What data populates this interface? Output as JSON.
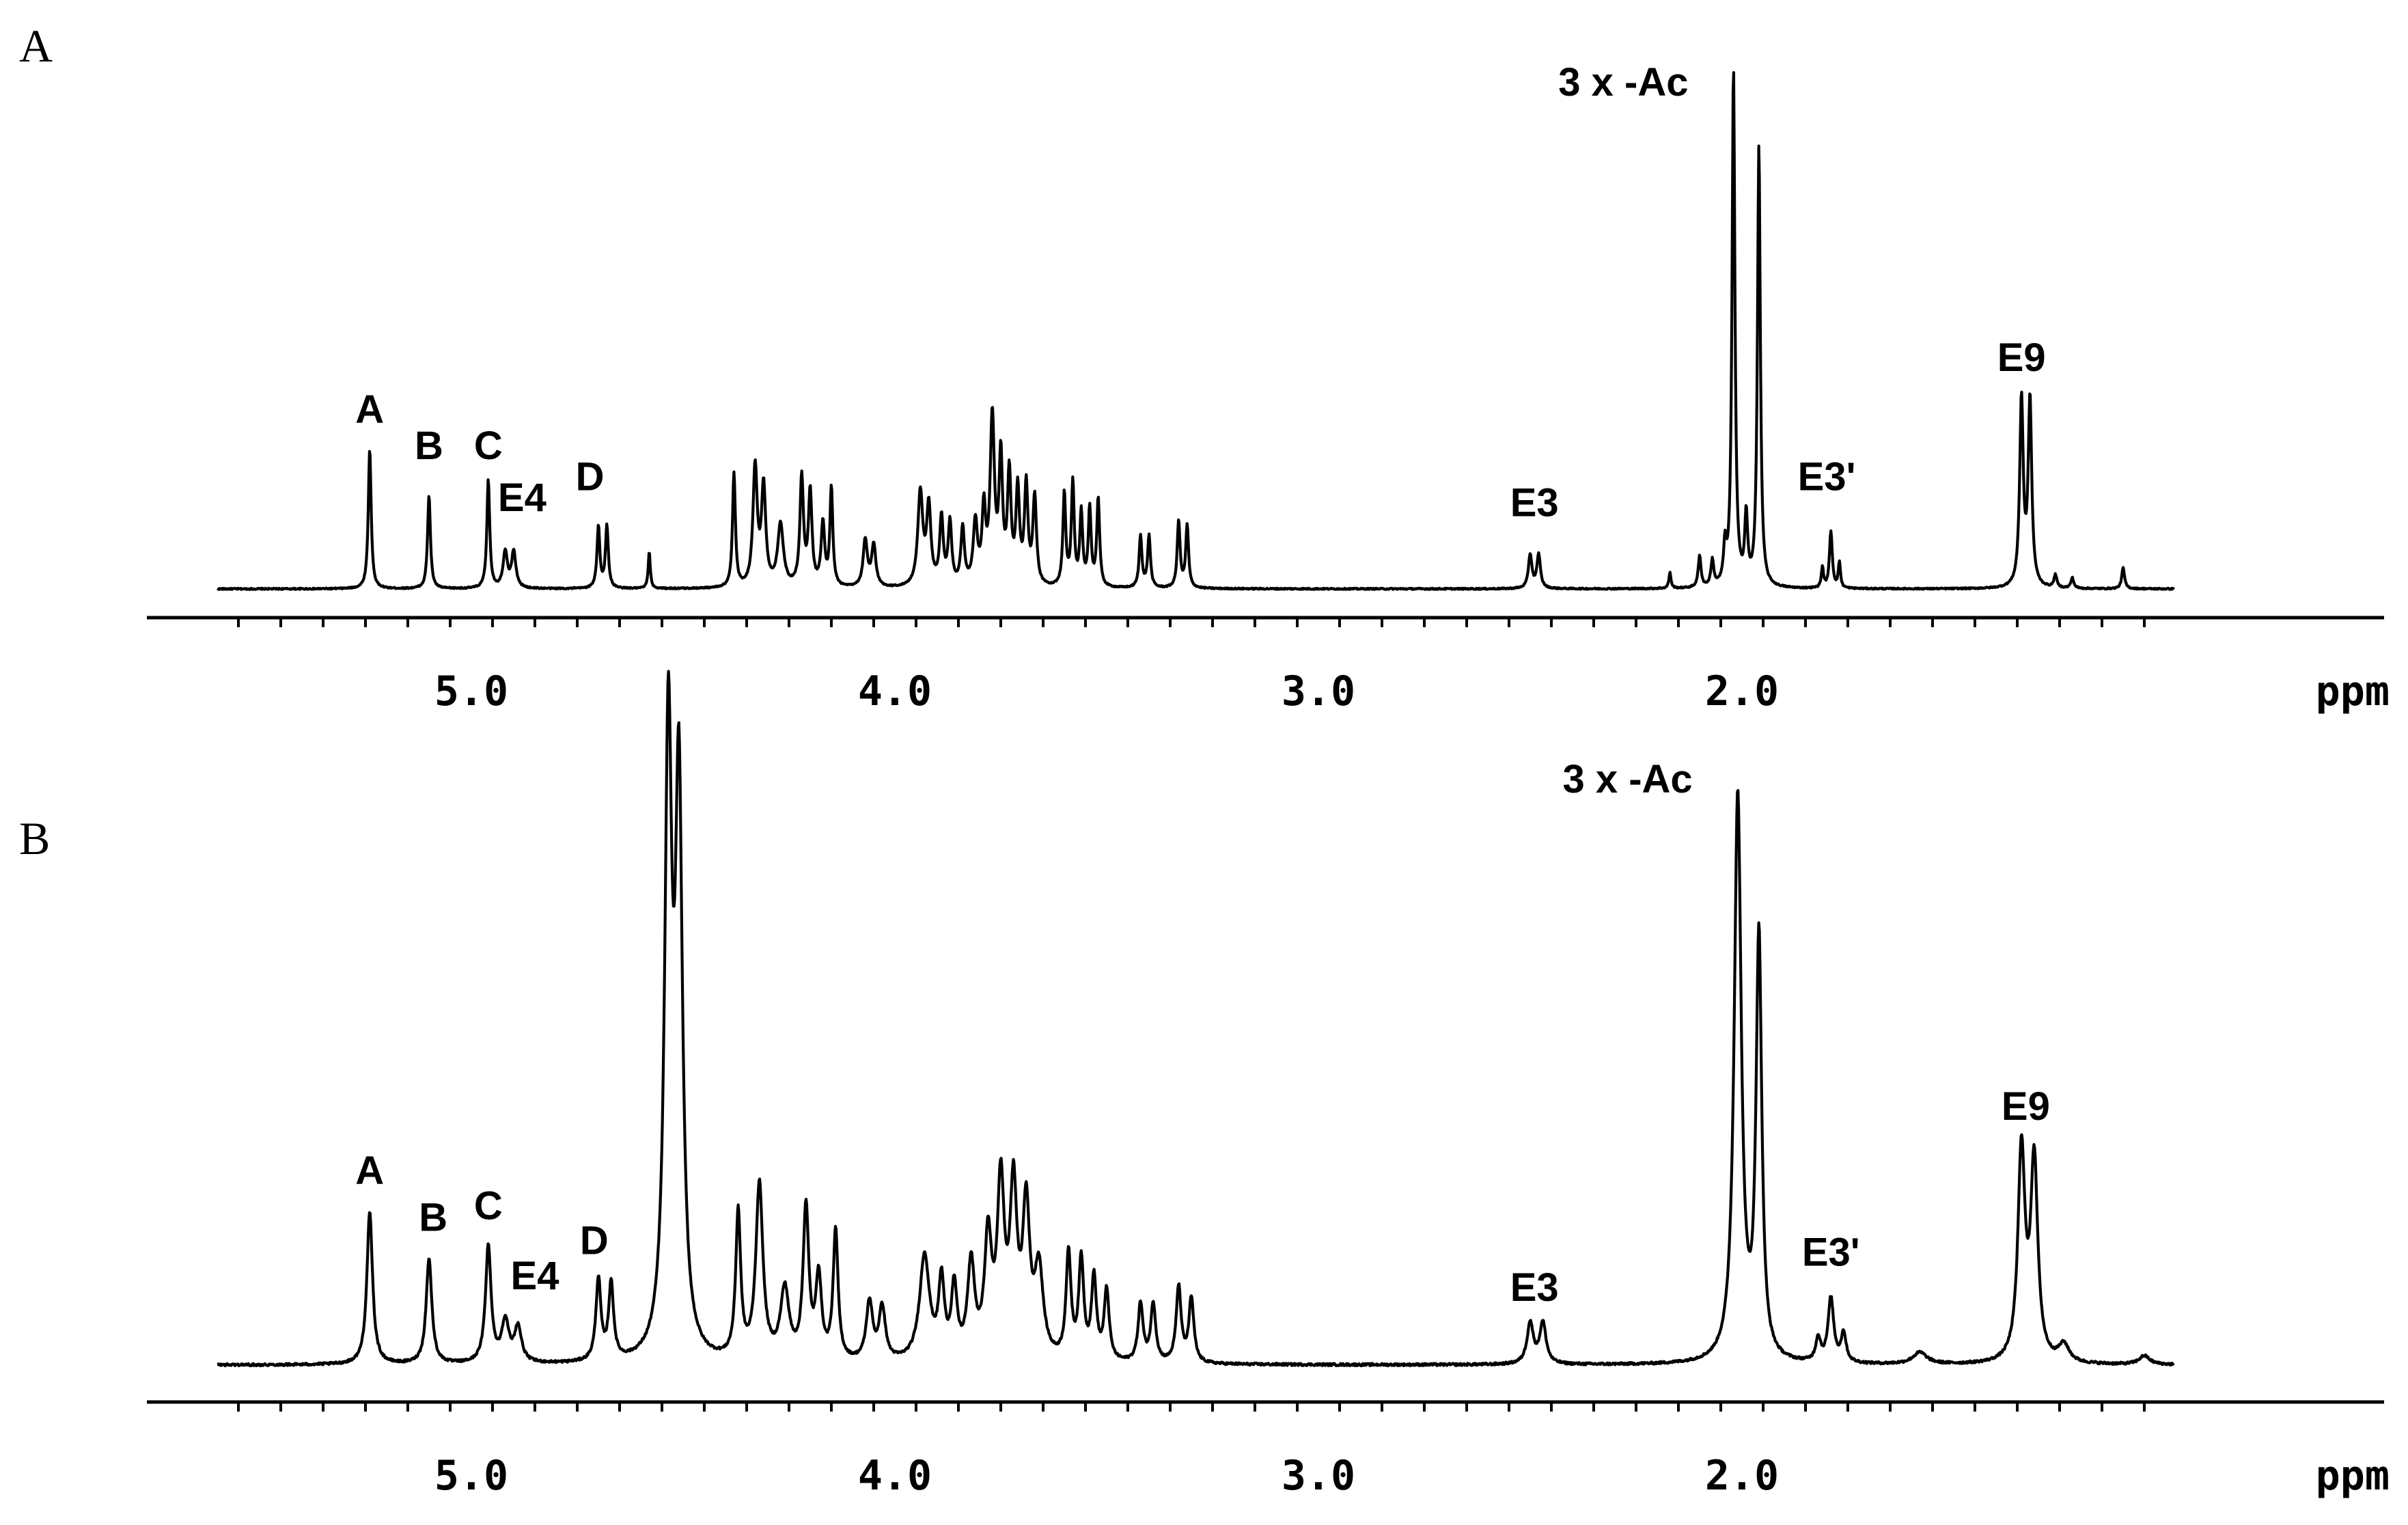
{
  "chart_data": [
    {
      "type": "line",
      "panel": "A",
      "x_axis": {
        "unit": "ppm",
        "reversed": true,
        "range": [
          5.6,
          0.98
        ],
        "tick_labels": [
          "5.0",
          "4.0",
          "3.0",
          "2.0"
        ],
        "minor_step": 0.1
      },
      "y_range": [
        0,
        1
      ],
      "peaks": [
        {
          "label": "A",
          "ppm": 5.24,
          "height": 0.27,
          "width": 0.004
        },
        {
          "label": "B",
          "ppm": 5.1,
          "height": 0.18,
          "width": 0.004
        },
        {
          "label": "C",
          "ppm": 4.96,
          "height": 0.21,
          "width": 0.004
        },
        {
          "label": "E4",
          "ppm": 4.92,
          "height": 0.07,
          "width": 0.006
        },
        {
          "ppm": 4.9,
          "height": 0.07,
          "width": 0.006
        },
        {
          "label": "D",
          "ppm": 4.7,
          "height": 0.12,
          "width": 0.004
        },
        {
          "ppm": 4.68,
          "height": 0.12,
          "width": 0.004
        },
        {
          "ppm": 4.58,
          "height": 0.07,
          "width": 0.003
        },
        {
          "ppm": 4.38,
          "height": 0.22,
          "width": 0.004
        },
        {
          "ppm": 4.33,
          "height": 0.23,
          "width": 0.006
        },
        {
          "ppm": 4.31,
          "height": 0.19,
          "width": 0.006
        },
        {
          "ppm": 4.27,
          "height": 0.12,
          "width": 0.008
        },
        {
          "ppm": 4.22,
          "height": 0.21,
          "width": 0.005
        },
        {
          "ppm": 4.2,
          "height": 0.18,
          "width": 0.005
        },
        {
          "ppm": 4.17,
          "height": 0.12,
          "width": 0.005
        },
        {
          "ppm": 4.15,
          "height": 0.19,
          "width": 0.004
        },
        {
          "ppm": 4.07,
          "height": 0.09,
          "width": 0.006
        },
        {
          "ppm": 4.05,
          "height": 0.08,
          "width": 0.006
        },
        {
          "ppm": 3.94,
          "height": 0.18,
          "width": 0.007
        },
        {
          "ppm": 3.92,
          "height": 0.15,
          "width": 0.006
        },
        {
          "ppm": 3.89,
          "height": 0.13,
          "width": 0.005
        },
        {
          "ppm": 3.87,
          "height": 0.12,
          "width": 0.005
        },
        {
          "ppm": 3.84,
          "height": 0.11,
          "width": 0.005
        },
        {
          "ppm": 3.81,
          "height": 0.12,
          "width": 0.006
        },
        {
          "ppm": 3.79,
          "height": 0.14,
          "width": 0.005
        },
        {
          "ppm": 3.77,
          "height": 0.32,
          "width": 0.006
        },
        {
          "ppm": 3.75,
          "height": 0.24,
          "width": 0.005
        },
        {
          "ppm": 3.73,
          "height": 0.21,
          "width": 0.005
        },
        {
          "ppm": 3.71,
          "height": 0.18,
          "width": 0.005
        },
        {
          "ppm": 3.69,
          "height": 0.19,
          "width": 0.005
        },
        {
          "ppm": 3.67,
          "height": 0.17,
          "width": 0.005
        },
        {
          "ppm": 3.6,
          "height": 0.18,
          "width": 0.004
        },
        {
          "ppm": 3.58,
          "height": 0.2,
          "width": 0.004
        },
        {
          "ppm": 3.56,
          "height": 0.14,
          "width": 0.004
        },
        {
          "ppm": 3.54,
          "height": 0.15,
          "width": 0.004
        },
        {
          "ppm": 3.52,
          "height": 0.17,
          "width": 0.004
        },
        {
          "ppm": 3.42,
          "height": 0.1,
          "width": 0.004
        },
        {
          "ppm": 3.4,
          "height": 0.1,
          "width": 0.004
        },
        {
          "ppm": 3.33,
          "height": 0.13,
          "width": 0.004
        },
        {
          "ppm": 3.31,
          "height": 0.12,
          "width": 0.004
        },
        {
          "label": "E3",
          "ppm": 2.5,
          "height": 0.065,
          "width": 0.005
        },
        {
          "ppm": 2.48,
          "height": 0.065,
          "width": 0.005
        },
        {
          "ppm": 2.17,
          "height": 0.03,
          "width": 0.003
        },
        {
          "ppm": 2.1,
          "height": 0.06,
          "width": 0.004
        },
        {
          "ppm": 2.07,
          "height": 0.05,
          "width": 0.004
        },
        {
          "ppm": 2.04,
          "height": 0.07,
          "width": 0.004
        },
        {
          "label": "3 x -Ac",
          "ppm": 2.02,
          "height": 1.0,
          "width": 0.004
        },
        {
          "ppm": 1.99,
          "height": 0.13,
          "width": 0.004
        },
        {
          "ppm": 1.96,
          "height": 0.85,
          "width": 0.004
        },
        {
          "ppm": 1.81,
          "height": 0.04,
          "width": 0.003
        },
        {
          "label": "E3'",
          "ppm": 1.79,
          "height": 0.11,
          "width": 0.004
        },
        {
          "ppm": 1.77,
          "height": 0.05,
          "width": 0.003
        },
        {
          "label": "E9",
          "ppm": 1.34,
          "height": 0.36,
          "width": 0.005
        },
        {
          "ppm": 1.32,
          "height": 0.36,
          "width": 0.005
        },
        {
          "ppm": 1.26,
          "height": 0.025,
          "width": 0.004
        },
        {
          "ppm": 1.22,
          "height": 0.02,
          "width": 0.004
        },
        {
          "ppm": 1.1,
          "height": 0.04,
          "width": 0.004
        }
      ],
      "annotations": [
        {
          "text": "A",
          "ppm": 5.24,
          "y": 0.32
        },
        {
          "text": "B",
          "ppm": 5.1,
          "y": 0.25
        },
        {
          "text": "C",
          "ppm": 4.96,
          "y": 0.25
        },
        {
          "text": "E4",
          "ppm": 4.88,
          "y": 0.15
        },
        {
          "text": "D",
          "ppm": 4.72,
          "y": 0.19
        },
        {
          "text": "E3",
          "ppm": 2.49,
          "y": 0.14
        },
        {
          "text": "3 x -Ac",
          "ppm": 2.28,
          "y": 0.95
        },
        {
          "text": "E3'",
          "ppm": 1.8,
          "y": 0.19
        },
        {
          "text": "E9",
          "ppm": 1.34,
          "y": 0.42
        }
      ]
    },
    {
      "type": "line",
      "panel": "B",
      "x_axis": {
        "unit": "ppm",
        "reversed": true,
        "range": [
          5.6,
          0.98
        ],
        "tick_labels": [
          "5.0",
          "4.0",
          "3.0",
          "2.0"
        ],
        "minor_step": 0.1
      },
      "y_range": [
        0,
        1
      ],
      "peaks": [
        {
          "label": "A",
          "ppm": 5.24,
          "height": 0.26,
          "width": 0.008
        },
        {
          "label": "B",
          "ppm": 5.1,
          "height": 0.18,
          "width": 0.008
        },
        {
          "label": "C",
          "ppm": 4.96,
          "height": 0.2,
          "width": 0.008
        },
        {
          "label": "E4",
          "ppm": 4.92,
          "height": 0.07,
          "width": 0.01
        },
        {
          "ppm": 4.89,
          "height": 0.06,
          "width": 0.01
        },
        {
          "label": "D",
          "ppm": 4.7,
          "height": 0.14,
          "width": 0.007
        },
        {
          "ppm": 4.67,
          "height": 0.13,
          "width": 0.007
        },
        {
          "ppm": 4.535,
          "height": 1.05,
          "width": 0.01
        },
        {
          "ppm": 4.51,
          "height": 0.95,
          "width": 0.01
        },
        {
          "ppm": 4.37,
          "height": 0.25,
          "width": 0.007
        },
        {
          "ppm": 4.32,
          "height": 0.3,
          "width": 0.01
        },
        {
          "ppm": 4.26,
          "height": 0.12,
          "width": 0.012
        },
        {
          "ppm": 4.21,
          "height": 0.26,
          "width": 0.008
        },
        {
          "ppm": 4.18,
          "height": 0.14,
          "width": 0.008
        },
        {
          "ppm": 4.14,
          "height": 0.22,
          "width": 0.007
        },
        {
          "ppm": 4.06,
          "height": 0.1,
          "width": 0.009
        },
        {
          "ppm": 4.03,
          "height": 0.09,
          "width": 0.009
        },
        {
          "ppm": 3.93,
          "height": 0.18,
          "width": 0.014
        },
        {
          "ppm": 3.89,
          "height": 0.13,
          "width": 0.008
        },
        {
          "ppm": 3.86,
          "height": 0.12,
          "width": 0.008
        },
        {
          "ppm": 3.82,
          "height": 0.16,
          "width": 0.01
        },
        {
          "ppm": 3.78,
          "height": 0.2,
          "width": 0.01
        },
        {
          "ppm": 3.75,
          "height": 0.29,
          "width": 0.01
        },
        {
          "ppm": 3.72,
          "height": 0.28,
          "width": 0.01
        },
        {
          "ppm": 3.69,
          "height": 0.25,
          "width": 0.01
        },
        {
          "ppm": 3.66,
          "height": 0.15,
          "width": 0.012
        },
        {
          "ppm": 3.59,
          "height": 0.18,
          "width": 0.007
        },
        {
          "ppm": 3.56,
          "height": 0.17,
          "width": 0.007
        },
        {
          "ppm": 3.53,
          "height": 0.14,
          "width": 0.007
        },
        {
          "ppm": 3.5,
          "height": 0.12,
          "width": 0.007
        },
        {
          "ppm": 3.42,
          "height": 0.1,
          "width": 0.007
        },
        {
          "ppm": 3.39,
          "height": 0.1,
          "width": 0.007
        },
        {
          "ppm": 3.33,
          "height": 0.13,
          "width": 0.007
        },
        {
          "ppm": 3.3,
          "height": 0.11,
          "width": 0.007
        },
        {
          "label": "E3",
          "ppm": 2.5,
          "height": 0.07,
          "width": 0.009
        },
        {
          "ppm": 2.47,
          "height": 0.07,
          "width": 0.009
        },
        {
          "label": "3 x -Ac",
          "ppm": 2.01,
          "height": 0.97,
          "width": 0.01
        },
        {
          "ppm": 1.96,
          "height": 0.72,
          "width": 0.008
        },
        {
          "ppm": 1.82,
          "height": 0.04,
          "width": 0.007
        },
        {
          "label": "E3'",
          "ppm": 1.79,
          "height": 0.11,
          "width": 0.008
        },
        {
          "ppm": 1.76,
          "height": 0.05,
          "width": 0.007
        },
        {
          "ppm": 1.58,
          "height": 0.02,
          "width": 0.02
        },
        {
          "label": "E9",
          "ppm": 1.34,
          "height": 0.36,
          "width": 0.01
        },
        {
          "ppm": 1.31,
          "height": 0.34,
          "width": 0.01
        },
        {
          "ppm": 1.24,
          "height": 0.03,
          "width": 0.015
        },
        {
          "ppm": 1.05,
          "height": 0.015,
          "width": 0.015
        }
      ],
      "annotations": [
        {
          "text": "A",
          "ppm": 5.24,
          "y": 0.31
        },
        {
          "text": "B",
          "ppm": 5.09,
          "y": 0.23
        },
        {
          "text": "C",
          "ppm": 4.96,
          "y": 0.25
        },
        {
          "text": "E4",
          "ppm": 4.85,
          "y": 0.13
        },
        {
          "text": "D",
          "ppm": 4.71,
          "y": 0.19
        },
        {
          "text": "E3",
          "ppm": 2.49,
          "y": 0.11
        },
        {
          "text": "3 x -Ac",
          "ppm": 2.27,
          "y": 0.98
        },
        {
          "text": "E3'",
          "ppm": 1.79,
          "y": 0.17
        },
        {
          "text": "E9",
          "ppm": 1.33,
          "y": 0.42
        }
      ]
    }
  ]
}
